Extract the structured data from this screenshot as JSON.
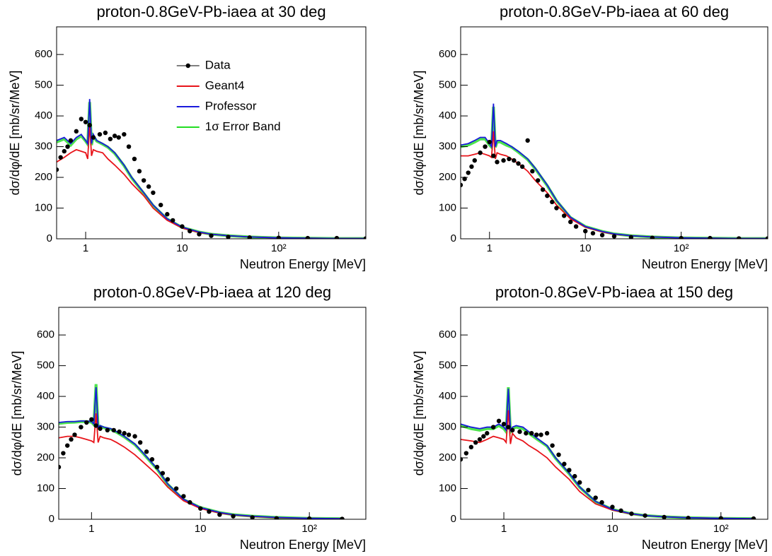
{
  "chart_data": [
    {
      "type": "line",
      "title": "proton-0.8GeV-Pb-iaea at 30 deg",
      "xlabel": "Neutron Energy [MeV]",
      "ylabel": "dσ/dφ/dE [mb/sr/MeV]",
      "xscale": "log",
      "xlim": [
        0.5,
        800
      ],
      "ylim": [
        0,
        690
      ],
      "xticks": [
        1,
        10,
        {
          "value": 100,
          "label": "10²"
        }
      ],
      "yticks": [
        0,
        100,
        200,
        300,
        400,
        500,
        600
      ],
      "legend": "upper-center",
      "series": [
        {
          "name": "Data",
          "color": "#000000",
          "style": "points",
          "x": [
            0.5,
            0.55,
            0.6,
            0.65,
            0.7,
            0.8,
            0.9,
            1.0,
            1.1,
            1.2,
            1.4,
            1.6,
            1.8,
            2.0,
            2.2,
            2.5,
            2.8,
            3.2,
            3.6,
            4,
            4.5,
            5,
            6,
            7,
            8,
            10,
            12,
            15,
            20,
            30,
            50,
            100,
            200,
            400,
            800
          ],
          "values": [
            225,
            265,
            285,
            300,
            320,
            350,
            390,
            380,
            370,
            330,
            340,
            345,
            325,
            335,
            330,
            340,
            300,
            260,
            220,
            190,
            170,
            150,
            110,
            80,
            60,
            40,
            25,
            15,
            10,
            6,
            4,
            3,
            2,
            2,
            1
          ]
        },
        {
          "name": "Geant4",
          "color": "#e8141a",
          "style": "line",
          "x": [
            0.5,
            0.6,
            0.7,
            0.8,
            0.9,
            1.0,
            1.05,
            1.1,
            1.15,
            1.2,
            1.3,
            1.5,
            1.7,
            2,
            2.5,
            3,
            4,
            5,
            7,
            10,
            15,
            20,
            30,
            50,
            100,
            200,
            400,
            800
          ],
          "values": [
            250,
            265,
            280,
            290,
            285,
            280,
            260,
            375,
            270,
            290,
            285,
            280,
            260,
            240,
            210,
            180,
            140,
            100,
            60,
            35,
            20,
            15,
            10,
            6,
            3,
            2,
            1,
            1
          ]
        },
        {
          "name": "Professor",
          "color": "#1a1adc",
          "style": "line",
          "x": [
            0.5,
            0.6,
            0.7,
            0.8,
            0.9,
            1.0,
            1.05,
            1.1,
            1.15,
            1.2,
            1.3,
            1.5,
            1.7,
            2,
            2.5,
            3,
            4,
            5,
            7,
            10,
            15,
            20,
            30,
            50,
            100,
            200,
            400,
            800
          ],
          "values": [
            320,
            330,
            310,
            330,
            340,
            320,
            310,
            455,
            310,
            340,
            320,
            310,
            300,
            280,
            240,
            200,
            150,
            110,
            65,
            38,
            22,
            15,
            10,
            6,
            3,
            2,
            1,
            1
          ]
        },
        {
          "name": "1σ Error Band",
          "color": "#22dd22",
          "style": "band",
          "x": [
            0.5,
            0.6,
            0.7,
            0.8,
            0.9,
            1.0,
            1.05,
            1.1,
            1.15,
            1.2,
            1.3,
            1.5,
            1.7,
            2,
            2.5,
            3,
            4,
            5,
            7,
            10,
            15,
            20,
            30,
            50,
            100,
            200,
            400,
            800
          ],
          "values": [
            315,
            325,
            305,
            325,
            335,
            318,
            308,
            445,
            305,
            335,
            318,
            308,
            298,
            278,
            238,
            198,
            148,
            108,
            64,
            37,
            22,
            15,
            10,
            6,
            3,
            2,
            1,
            1
          ]
        }
      ]
    },
    {
      "type": "line",
      "title": "proton-0.8GeV-Pb-iaea at 60 deg",
      "xlabel": "Neutron Energy [MeV]",
      "ylabel": "dσ/dφ/dE [mb/sr/MeV]",
      "xscale": "log",
      "xlim": [
        0.5,
        800
      ],
      "ylim": [
        0,
        690
      ],
      "xticks": [
        1,
        10,
        {
          "value": 100,
          "label": "10²"
        }
      ],
      "yticks": [
        0,
        100,
        200,
        300,
        400,
        500,
        600
      ],
      "series": [
        {
          "color": "#000000",
          "style": "points",
          "x": [
            0.5,
            0.55,
            0.6,
            0.65,
            0.7,
            0.8,
            0.9,
            1.0,
            1.1,
            1.2,
            1.4,
            1.6,
            1.8,
            2.0,
            2.2,
            2.5,
            2.8,
            3.2,
            3.6,
            4,
            4.5,
            5,
            6,
            7,
            8,
            10,
            12,
            15,
            20,
            30,
            50,
            100,
            200,
            400,
            800
          ],
          "values": [
            175,
            195,
            215,
            235,
            255,
            280,
            300,
            315,
            270,
            250,
            255,
            260,
            255,
            245,
            235,
            320,
            220,
            190,
            160,
            140,
            120,
            100,
            75,
            55,
            40,
            25,
            18,
            12,
            8,
            5,
            3,
            2,
            2,
            1,
            1
          ]
        },
        {
          "color": "#e8141a",
          "style": "line",
          "x": [
            0.5,
            0.6,
            0.7,
            0.8,
            0.9,
            1.0,
            1.05,
            1.1,
            1.15,
            1.2,
            1.3,
            1.5,
            1.7,
            2,
            2.5,
            3,
            4,
            5,
            7,
            10,
            15,
            20,
            30,
            50,
            100,
            200,
            400,
            800
          ],
          "values": [
            270,
            270,
            275,
            280,
            275,
            270,
            265,
            350,
            260,
            280,
            275,
            270,
            260,
            245,
            220,
            190,
            150,
            110,
            65,
            38,
            22,
            15,
            10,
            6,
            3,
            2,
            1,
            1
          ]
        },
        {
          "color": "#1a1adc",
          "style": "line",
          "x": [
            0.5,
            0.6,
            0.7,
            0.8,
            0.9,
            1.0,
            1.05,
            1.1,
            1.15,
            1.2,
            1.3,
            1.5,
            1.7,
            2,
            2.5,
            3,
            4,
            5,
            7,
            10,
            15,
            20,
            30,
            50,
            100,
            200,
            400,
            800
          ],
          "values": [
            305,
            310,
            320,
            330,
            330,
            310,
            300,
            440,
            300,
            320,
            320,
            310,
            300,
            285,
            260,
            230,
            175,
            125,
            70,
            40,
            24,
            16,
            10,
            6,
            3,
            2,
            1,
            1
          ]
        },
        {
          "color": "#22dd22",
          "style": "band",
          "x": [
            0.5,
            0.6,
            0.7,
            0.8,
            0.9,
            1.0,
            1.05,
            1.1,
            1.15,
            1.2,
            1.3,
            1.5,
            1.7,
            2,
            2.5,
            3,
            4,
            5,
            7,
            10,
            15,
            20,
            30,
            50,
            100,
            200,
            400,
            800
          ],
          "values": [
            300,
            305,
            315,
            325,
            325,
            305,
            298,
            430,
            298,
            315,
            315,
            305,
            298,
            282,
            258,
            228,
            173,
            124,
            69,
            40,
            24,
            16,
            10,
            6,
            3,
            2,
            1,
            1
          ]
        }
      ]
    },
    {
      "type": "line",
      "title": "proton-0.8GeV-Pb-iaea at 120 deg",
      "xlabel": "Neutron Energy [MeV]",
      "ylabel": "dσ/dφ/dE [mb/sr/MeV]",
      "xscale": "log",
      "xlim": [
        0.5,
        330
      ],
      "ylim": [
        0,
        690
      ],
      "xticks": [
        1,
        10,
        {
          "value": 100,
          "label": "10²"
        }
      ],
      "yticks": [
        0,
        100,
        200,
        300,
        400,
        500,
        600
      ],
      "series": [
        {
          "color": "#000000",
          "style": "points",
          "x": [
            0.5,
            0.55,
            0.6,
            0.65,
            0.7,
            0.8,
            0.9,
            1.0,
            1.1,
            1.2,
            1.4,
            1.6,
            1.8,
            2.0,
            2.2,
            2.5,
            2.8,
            3.2,
            3.6,
            4,
            4.5,
            5,
            6,
            7,
            8,
            10,
            12,
            15,
            20,
            30,
            50,
            100,
            200
          ],
          "values": [
            170,
            215,
            240,
            260,
            275,
            300,
            315,
            325,
            305,
            295,
            290,
            290,
            285,
            280,
            275,
            270,
            250,
            220,
            195,
            170,
            150,
            130,
            100,
            75,
            55,
            35,
            25,
            15,
            10,
            6,
            3,
            2,
            1
          ]
        },
        {
          "color": "#e8141a",
          "style": "line",
          "x": [
            0.5,
            0.6,
            0.7,
            0.8,
            0.9,
            1.0,
            1.05,
            1.1,
            1.15,
            1.2,
            1.3,
            1.5,
            1.7,
            2,
            2.5,
            3,
            4,
            5,
            7,
            10,
            15,
            20,
            30,
            50,
            100,
            200
          ],
          "values": [
            265,
            270,
            270,
            265,
            260,
            255,
            250,
            345,
            250,
            270,
            265,
            260,
            250,
            235,
            210,
            185,
            145,
            105,
            60,
            35,
            20,
            14,
            9,
            5,
            3,
            2
          ]
        },
        {
          "color": "#1a1adc",
          "style": "line",
          "x": [
            0.5,
            0.6,
            0.7,
            0.8,
            0.9,
            1.0,
            1.05,
            1.1,
            1.15,
            1.2,
            1.3,
            1.5,
            1.7,
            2,
            2.5,
            3,
            4,
            5,
            7,
            10,
            15,
            20,
            30,
            50,
            100,
            200
          ],
          "values": [
            315,
            318,
            318,
            320,
            320,
            318,
            310,
            430,
            300,
            305,
            300,
            295,
            285,
            270,
            245,
            215,
            165,
            115,
            65,
            38,
            22,
            15,
            10,
            6,
            3,
            2
          ]
        },
        {
          "color": "#22dd22",
          "style": "band",
          "x": [
            0.5,
            0.6,
            0.7,
            0.8,
            0.9,
            1.0,
            1.05,
            1.1,
            1.15,
            1.2,
            1.3,
            1.5,
            1.7,
            2,
            2.5,
            3,
            4,
            5,
            7,
            10,
            15,
            20,
            30,
            50,
            100,
            200
          ],
          "values": [
            312,
            315,
            316,
            318,
            318,
            316,
            308,
            440,
            298,
            303,
            298,
            293,
            283,
            268,
            243,
            213,
            163,
            114,
            64,
            38,
            22,
            15,
            10,
            6,
            3,
            2
          ]
        }
      ]
    },
    {
      "type": "line",
      "title": "proton-0.8GeV-Pb-iaea at 150 deg",
      "xlabel": "Neutron Energy [MeV]",
      "ylabel": "dσ/dφ/dE [mb/sr/MeV]",
      "xscale": "log",
      "xlim": [
        0.4,
        270
      ],
      "ylim": [
        0,
        690
      ],
      "xticks": [
        1,
        10,
        {
          "value": 100,
          "label": "10²"
        }
      ],
      "yticks": [
        0,
        100,
        200,
        300,
        400,
        500,
        600
      ],
      "series": [
        {
          "color": "#000000",
          "style": "points",
          "x": [
            0.4,
            0.45,
            0.5,
            0.55,
            0.6,
            0.65,
            0.7,
            0.8,
            0.9,
            1.0,
            1.1,
            1.2,
            1.4,
            1.6,
            1.8,
            2.0,
            2.2,
            2.5,
            2.8,
            3.2,
            3.6,
            4,
            4.5,
            5,
            6,
            7,
            8,
            10,
            12,
            15,
            20,
            30,
            50,
            100,
            200
          ],
          "values": [
            195,
            215,
            235,
            250,
            260,
            270,
            280,
            300,
            320,
            310,
            300,
            290,
            285,
            280,
            280,
            275,
            275,
            280,
            240,
            210,
            180,
            160,
            140,
            120,
            95,
            70,
            55,
            40,
            28,
            18,
            12,
            7,
            4,
            3,
            2
          ]
        },
        {
          "color": "#e8141a",
          "style": "line",
          "x": [
            0.4,
            0.5,
            0.6,
            0.7,
            0.8,
            0.9,
            1.0,
            1.05,
            1.1,
            1.15,
            1.2,
            1.3,
            1.5,
            1.7,
            2,
            2.5,
            3,
            4,
            5,
            7,
            10,
            15,
            20,
            30,
            50,
            100,
            200
          ],
          "values": [
            260,
            255,
            250,
            260,
            270,
            265,
            260,
            250,
            355,
            245,
            280,
            265,
            255,
            240,
            225,
            200,
            170,
            130,
            90,
            50,
            30,
            17,
            12,
            8,
            5,
            3,
            2
          ]
        },
        {
          "color": "#1a1adc",
          "style": "line",
          "x": [
            0.4,
            0.5,
            0.6,
            0.7,
            0.8,
            0.9,
            1.0,
            1.05,
            1.1,
            1.15,
            1.2,
            1.3,
            1.5,
            1.7,
            2,
            2.5,
            3,
            4,
            5,
            7,
            10,
            15,
            20,
            30,
            50,
            100,
            200
          ],
          "values": [
            310,
            300,
            295,
            300,
            300,
            310,
            300,
            290,
            425,
            290,
            300,
            305,
            300,
            285,
            265,
            240,
            200,
            150,
            105,
            58,
            32,
            18,
            12,
            8,
            5,
            3,
            2
          ]
        },
        {
          "color": "#22dd22",
          "style": "band",
          "x": [
            0.4,
            0.5,
            0.6,
            0.7,
            0.8,
            0.9,
            1.0,
            1.05,
            1.1,
            1.15,
            1.2,
            1.3,
            1.5,
            1.7,
            2,
            2.5,
            3,
            4,
            5,
            7,
            10,
            15,
            20,
            30,
            50,
            100,
            200
          ],
          "values": [
            305,
            295,
            290,
            295,
            295,
            305,
            295,
            285,
            430,
            285,
            295,
            300,
            295,
            280,
            262,
            238,
            198,
            148,
            104,
            57,
            32,
            18,
            12,
            8,
            5,
            3,
            2
          ]
        }
      ]
    }
  ]
}
